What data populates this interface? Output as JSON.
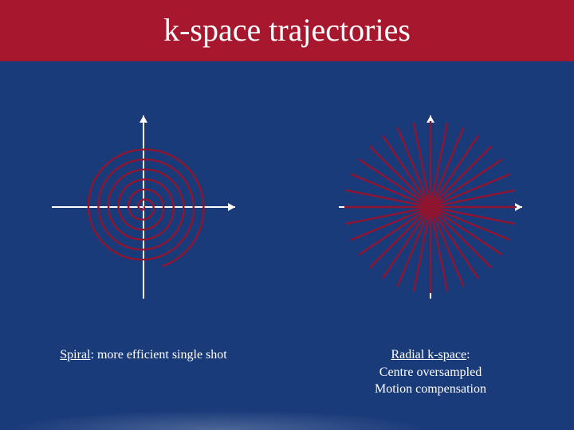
{
  "title": "k-space trajectories",
  "title_fontsize": 40,
  "colors": {
    "slide_bg": "#1a3b7a",
    "title_bar_bg": "#a7182f",
    "title_text": "#ffffff",
    "caption_text": "#ffffff",
    "axis_stroke": "#ffffff",
    "trajectory_stroke": "#8f1530"
  },
  "caption_fontsize": 16,
  "diagrams": {
    "spiral": {
      "type": "spiral",
      "axis_length": 230,
      "arrow_size": 9,
      "stroke_width": 2.4,
      "turns": 6.2,
      "max_radius": 78,
      "a": 2.0,
      "caption_lead": "Spiral",
      "caption_rest": ": more efficient single shot"
    },
    "radial": {
      "type": "radial-lines",
      "axis_length": 230,
      "arrow_size": 9,
      "stroke_width": 2.4,
      "num_spokes": 16,
      "spoke_half_length": 108,
      "caption_lead": "Radial k-space",
      "caption_lines": [
        "Centre oversampled",
        "Motion compensation"
      ]
    }
  }
}
